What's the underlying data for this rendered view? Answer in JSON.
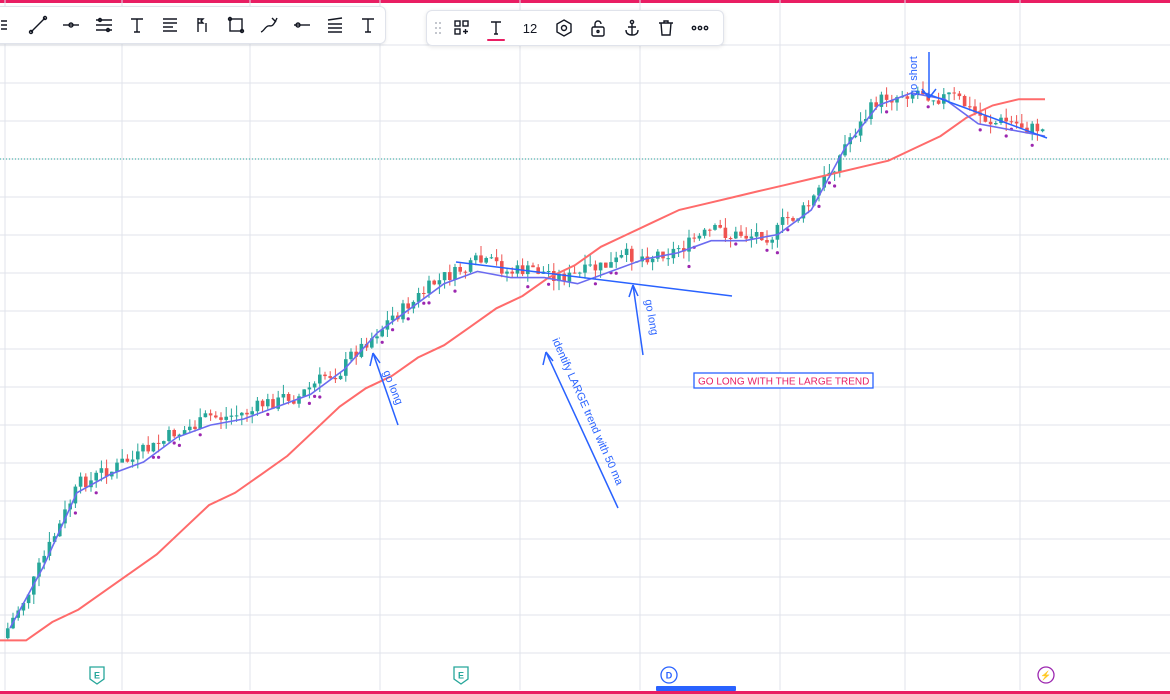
{
  "toolbar": {
    "tools": [
      {
        "name": "trend-line-tool",
        "icon": "diagonal-line-icon"
      },
      {
        "name": "horizontal-ray-tool",
        "icon": "horizontal-ray-icon"
      },
      {
        "name": "parallel-channel-tool",
        "icon": "parallel-channel-icon"
      },
      {
        "name": "text-tool",
        "icon": "text-t-icon"
      },
      {
        "name": "pitchfork-tool",
        "icon": "lines-icon"
      },
      {
        "name": "measure-tool",
        "icon": "measure-icon"
      },
      {
        "name": "rectangle-tool",
        "icon": "rectangle-icon"
      },
      {
        "name": "brush-tool",
        "icon": "brush-icon"
      },
      {
        "name": "ray-tool",
        "icon": "ray-icon"
      },
      {
        "name": "fib-tool",
        "icon": "fib-icon"
      },
      {
        "name": "text-label-tool",
        "icon": "text-t-icon"
      }
    ]
  },
  "floating_toolbar": {
    "font_size": "12",
    "accent": "#e91e63"
  },
  "colors": {
    "up": "#26a69a",
    "down": "#ef5350",
    "ma_fast": "#6b6bf0",
    "ma_slow": "#ff6b6b",
    "annotation": "#2962ff",
    "dot": "#9c27b0"
  },
  "chart_data": {
    "type": "candlestick",
    "title": "",
    "xlabel": "",
    "ylabel": "",
    "series": [
      {
        "name": "",
        "kind": "line",
        "values": [
          0.04,
          0.04,
          0.07,
          0.09,
          0.12,
          0.15,
          0.18,
          0.22,
          0.26,
          0.28,
          0.31,
          0.34,
          0.38,
          0.42,
          0.45,
          0.47,
          0.5,
          0.52,
          0.55,
          0.58,
          0.6,
          0.63,
          0.65,
          0.68,
          0.7,
          0.72,
          0.74,
          0.75,
          0.76,
          0.77,
          0.78,
          0.79,
          0.8,
          0.81,
          0.82,
          0.84,
          0.86,
          0.89,
          0.91,
          0.92,
          0.92
        ]
      },
      {
        "name": "",
        "kind": "line",
        "values": [
          0.06,
          0.16,
          0.28,
          0.31,
          0.33,
          0.37,
          0.39,
          0.4,
          0.42,
          0.44,
          0.48,
          0.54,
          0.58,
          0.62,
          0.64,
          0.63,
          0.63,
          0.62,
          0.64,
          0.66,
          0.67,
          0.69,
          0.69,
          0.7,
          0.74,
          0.84,
          0.91,
          0.93,
          0.92,
          0.88,
          0.87,
          0.86
        ]
      }
    ],
    "annotations": {
      "go_long_1": "go long",
      "identify": "identify LARGE trend with 50 ma",
      "go_long_2": "go long",
      "go_short": "go short",
      "box": "GO LONG WITH THE LARGE TREND"
    },
    "event_markers": [
      {
        "label": "E",
        "kind": "earnings"
      },
      {
        "label": "E",
        "kind": "earnings"
      },
      {
        "label": "D",
        "kind": "dividend"
      },
      {
        "label": "⚡",
        "kind": "split"
      }
    ],
    "grid": true
  }
}
